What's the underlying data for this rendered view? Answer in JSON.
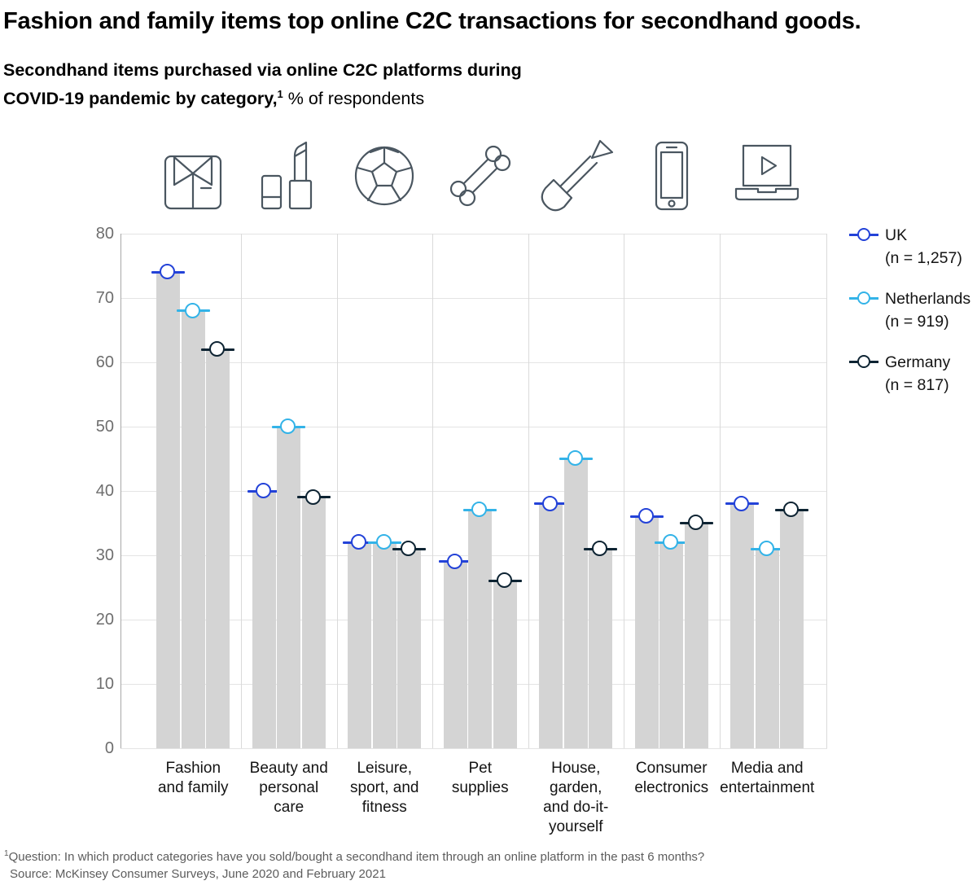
{
  "header": {
    "title": "Fashion and family items top online C2C transactions for secondhand goods.",
    "subtitle": {
      "line1": "Secondhand items purchased via online C2C platforms during",
      "line2_bold": "COVID-19 pandemic by category,",
      "sup": "1",
      "line2_regular": " % of respondents"
    }
  },
  "footer": {
    "sup": "1",
    "question": "Question: In which product categories have you sold/bought a secondhand item through an online platform in the past 6 months?",
    "source": "Source: McKinsey Consumer Surveys, June 2020 and February 2021"
  },
  "colors": {
    "uk": "#2342d8",
    "netherlands": "#33b3e8",
    "germany": "#0e2433",
    "bar_fill": "#d4d4d4",
    "gridline": "#e4e4e4",
    "icon_stroke": "#4a5660"
  },
  "chart_data": {
    "type": "bar",
    "title": "Secondhand items purchased via online C2C platforms during COVID-19 pandemic by category, % of respondents",
    "categories": [
      "Fashion and family",
      "Beauty and personal care",
      "Leisure, sport, and fitness",
      "Pet supplies",
      "House, garden, and do-it-yourself",
      "Consumer electronics",
      "Media and entertainment"
    ],
    "categories_lines": [
      [
        "Fashion",
        "and family"
      ],
      [
        "Beauty and",
        "personal",
        "care"
      ],
      [
        "Leisure,",
        "sport, and",
        "fitness"
      ],
      [
        "Pet",
        "supplies"
      ],
      [
        "House,",
        "garden,",
        "and do-it-",
        "yourself"
      ],
      [
        "Consumer",
        "electronics"
      ],
      [
        "Media and",
        "entertainment"
      ]
    ],
    "icons": [
      "shirt-bowtie",
      "lipstick",
      "soccer-ball",
      "bone",
      "shovel",
      "smartphone",
      "laptop-play"
    ],
    "series": [
      {
        "name": "UK",
        "n_label": "(n = 1,257)",
        "color": "#2342d8",
        "values": [
          74,
          40,
          32,
          29,
          38,
          36,
          38
        ]
      },
      {
        "name": "Netherlands",
        "n_label": "(n = 919)",
        "color": "#33b3e8",
        "values": [
          68,
          50,
          32,
          37,
          45,
          32,
          31
        ]
      },
      {
        "name": "Germany",
        "n_label": "(n = 817)",
        "color": "#0e2433",
        "values": [
          62,
          39,
          31,
          26,
          31,
          35,
          37
        ]
      }
    ],
    "xlabel": "",
    "ylabel": "% of respondents",
    "ylim": [
      0,
      80
    ],
    "yticks": [
      0,
      10,
      20,
      30,
      40,
      50,
      60,
      70,
      80
    ],
    "grid": true,
    "legend_position": "right"
  }
}
